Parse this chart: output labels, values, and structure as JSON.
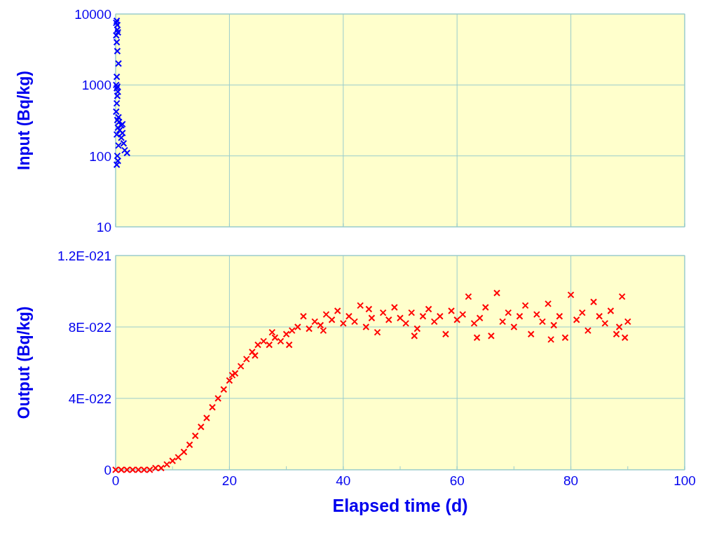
{
  "chart_data": [
    {
      "type": "scatter",
      "ylabel": "Input (Bq/kg)",
      "log": "y",
      "xlim": [
        0,
        100
      ],
      "xticks": [
        {
          "value": 0,
          "label": null
        },
        {
          "value": 20,
          "label": null
        },
        {
          "value": 40,
          "label": null
        },
        {
          "value": 60,
          "label": null
        },
        {
          "value": 80,
          "label": null
        },
        {
          "value": 100,
          "label": null
        }
      ],
      "ylim": [
        10,
        10000
      ],
      "yticks": [
        10,
        100,
        1000,
        10000
      ],
      "tick_labels": "y",
      "grid": true,
      "marker": "cross",
      "series": [
        {
          "color": "#0000ff",
          "x": [
            0.1,
            0.2,
            0.3,
            0.4,
            0.3,
            0.1,
            0.2,
            0.3,
            0.5,
            0.2,
            0.1,
            0.3,
            0.2,
            0.4,
            0.3,
            0.2,
            0.1,
            0.5,
            0.3,
            0.6,
            1.2,
            1.0,
            0.4,
            0.7,
            1.2,
            0.2,
            1.0,
            1.4,
            0.5,
            1.6,
            2.0,
            0.3,
            0.4,
            0.2
          ],
          "values": [
            7500,
            8000,
            7000,
            5500,
            6000,
            5000,
            4000,
            3000,
            2000,
            1300,
            1000,
            950,
            900,
            800,
            700,
            550,
            420,
            350,
            320,
            300,
            280,
            270,
            250,
            230,
            210,
            200,
            180,
            150,
            140,
            120,
            110,
            100,
            85,
            75
          ]
        }
      ]
    },
    {
      "type": "scatter",
      "xlabel": "Elapsed time (d)",
      "ylabel": "Output (Bq/kg)",
      "xlim": [
        0,
        100
      ],
      "xticks": [
        0,
        {
          "value": 10,
          "label": null
        },
        20,
        {
          "value": 30,
          "label": null
        },
        40,
        {
          "value": 50,
          "label": null
        },
        60,
        {
          "value": 70,
          "label": null
        },
        80,
        {
          "value": 90,
          "label": null
        },
        100
      ],
      "ylim": [
        0,
        1.2e-21
      ],
      "yticks": [
        0,
        {
          "value": 4e-22,
          "label": "4E-022"
        },
        {
          "value": 8e-22,
          "label": "8E-022"
        },
        {
          "value": 1.2e-21,
          "label": "1.2E-021"
        }
      ],
      "grid": true,
      "marker": "cross",
      "series": [
        {
          "color": "#ff0000",
          "x": [
            0,
            1,
            2,
            3,
            4,
            5,
            6,
            7,
            8,
            9,
            10,
            11,
            12,
            13,
            14,
            15,
            16,
            17,
            18,
            19,
            20,
            20.5,
            21,
            22,
            23,
            24,
            24.5,
            25,
            26,
            27,
            27.5,
            28,
            29,
            30,
            30.5,
            31,
            32,
            33,
            34,
            35,
            36,
            36.5,
            37,
            38,
            39,
            40,
            41,
            42,
            43,
            44,
            44.5,
            45,
            46,
            47,
            48,
            49,
            50,
            51,
            52,
            52.5,
            53,
            54,
            55,
            56,
            57,
            58,
            59,
            60,
            61,
            62,
            63,
            63.5,
            64,
            65,
            66,
            67,
            68,
            69,
            70,
            71,
            72,
            73,
            74,
            75,
            76,
            76.5,
            77,
            78,
            79,
            80,
            81,
            82,
            83,
            84,
            85,
            86,
            87,
            88,
            88.5,
            89,
            89.5,
            90
          ],
          "values": [
            0,
            0,
            0,
            0,
            0,
            0,
            0,
            1e-23,
            1e-23,
            3e-23,
            5e-23,
            7e-23,
            1e-22,
            1.4e-22,
            1.9e-22,
            2.4e-22,
            2.9e-22,
            3.5e-22,
            4e-22,
            4.5e-22,
            5e-22,
            5.3e-22,
            5.4e-22,
            5.8e-22,
            6.2e-22,
            6.6e-22,
            6.4e-22,
            7e-22,
            7.2e-22,
            7e-22,
            7.7e-22,
            7.4e-22,
            7.2e-22,
            7.6e-22,
            7e-22,
            7.8e-22,
            8e-22,
            8.6e-22,
            7.9e-22,
            8.3e-22,
            8.1e-22,
            7.8e-22,
            8.7e-22,
            8.4e-22,
            8.9e-22,
            8.2e-22,
            8.6e-22,
            8.3e-22,
            9.2e-22,
            8e-22,
            9e-22,
            8.5e-22,
            7.7e-22,
            8.8e-22,
            8.4e-22,
            9.1e-22,
            8.5e-22,
            8.2e-22,
            8.8e-22,
            7.5e-22,
            7.9e-22,
            8.6e-22,
            9e-22,
            8.3e-22,
            8.6e-22,
            7.6e-22,
            8.9e-22,
            8.4e-22,
            8.7e-22,
            9.7e-22,
            8.2e-22,
            7.4e-22,
            8.5e-22,
            9.1e-22,
            7.5e-22,
            9.9e-22,
            8.3e-22,
            8.8e-22,
            8e-22,
            8.6e-22,
            9.2e-22,
            7.6e-22,
            8.7e-22,
            8.3e-22,
            9.3e-22,
            7.3e-22,
            8.1e-22,
            8.6e-22,
            7.4e-22,
            9.8e-22,
            8.4e-22,
            8.8e-22,
            7.8e-22,
            9.4e-22,
            8.6e-22,
            8.2e-22,
            8.9e-22,
            7.6e-22,
            8e-22,
            9.7e-22,
            7.4e-22,
            8.3e-22
          ]
        }
      ]
    }
  ]
}
